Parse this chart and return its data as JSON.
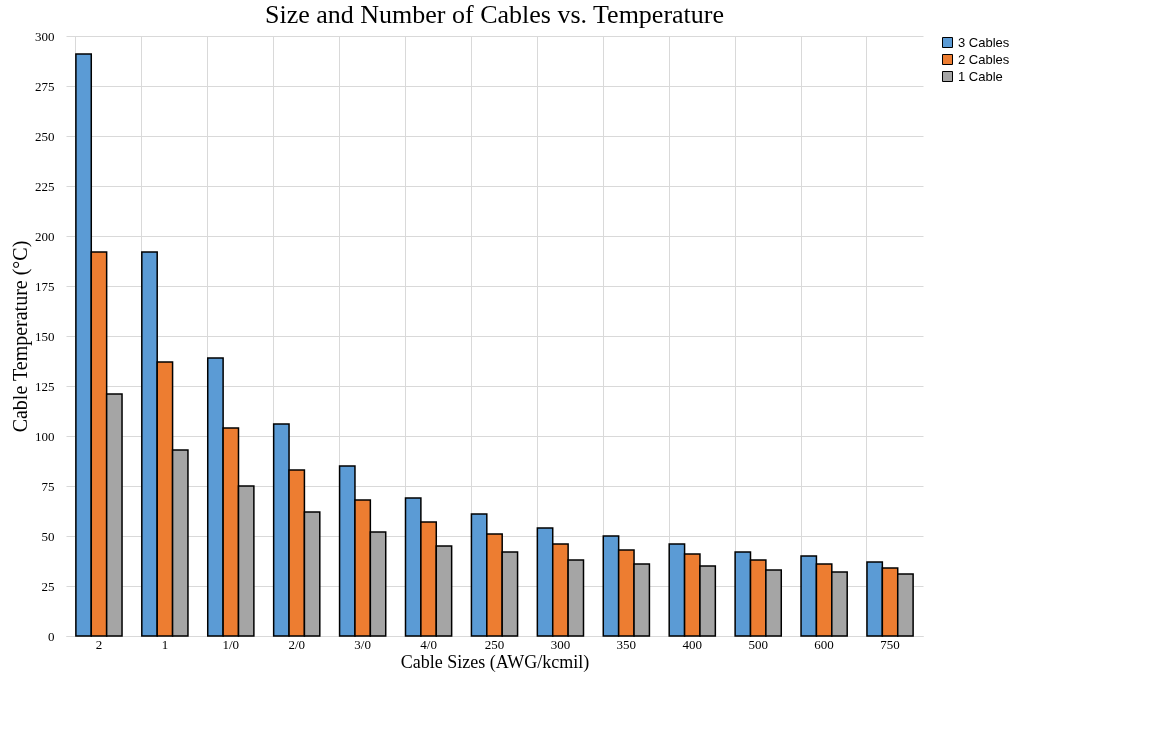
{
  "chart_data": {
    "type": "bar",
    "title": "Size and Number of Cables vs. Temperature",
    "xlabel": "Cable Sizes (AWG/kcmil)",
    "ylabel": "Cable Temperature (°C)",
    "categories": [
      "2",
      "1",
      "1/0",
      "2/0",
      "3/0",
      "4/0",
      "250",
      "300",
      "350",
      "400",
      "500",
      "600",
      "750"
    ],
    "series": [
      {
        "name": "3 Cables",
        "color": "#5b9bd5",
        "values": [
          291,
          192,
          139,
          106,
          85,
          69,
          61,
          54,
          50,
          46,
          42,
          40,
          37
        ]
      },
      {
        "name": "2 Cables",
        "color": "#ed7d31",
        "values": [
          192,
          137,
          104,
          83,
          68,
          57,
          51,
          46,
          43,
          41,
          38,
          36,
          34
        ]
      },
      {
        "name": "1 Cable",
        "color": "#a5a5a5",
        "values": [
          121,
          93,
          75,
          62,
          52,
          45,
          42,
          38,
          36,
          35,
          33,
          32,
          31
        ]
      }
    ],
    "ylim": [
      0,
      300
    ],
    "yticks": [
      0,
      25,
      50,
      75,
      100,
      125,
      150,
      175,
      200,
      225,
      250,
      275,
      300
    ],
    "grid": true,
    "legend": "right"
  }
}
